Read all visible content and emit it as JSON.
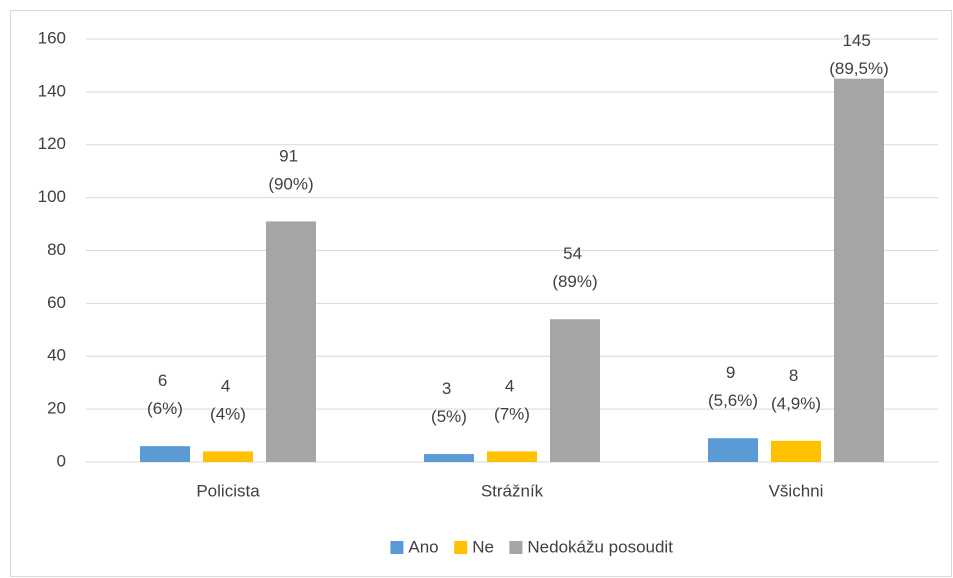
{
  "chart_data": {
    "type": "bar",
    "categories": [
      "Policista",
      "Strážník",
      "Všichni"
    ],
    "series": [
      {
        "name": "Ano",
        "color": "#5b9bd5",
        "values": [
          6,
          3,
          9
        ],
        "value_labels": [
          "6 (6%)",
          "3 (5%)",
          "9 (5,6%)"
        ]
      },
      {
        "name": "Ne",
        "color": "#ffc000",
        "values": [
          4,
          4,
          8
        ],
        "value_labels": [
          "4 (4%)",
          "4 (7%)",
          "8 (4,9%)"
        ]
      },
      {
        "name": "Nedokážu posoudit",
        "color": "#a5a5a5",
        "values": [
          91,
          54,
          145
        ],
        "value_labels": [
          "91 (90%)",
          "54 (89%)",
          "145 (89,5%)"
        ]
      }
    ],
    "ylim": [
      0,
      160
    ],
    "yticks": [
      0,
      20,
      40,
      60,
      80,
      100,
      120,
      140,
      160
    ],
    "grid": true,
    "legend": "bottom"
  }
}
